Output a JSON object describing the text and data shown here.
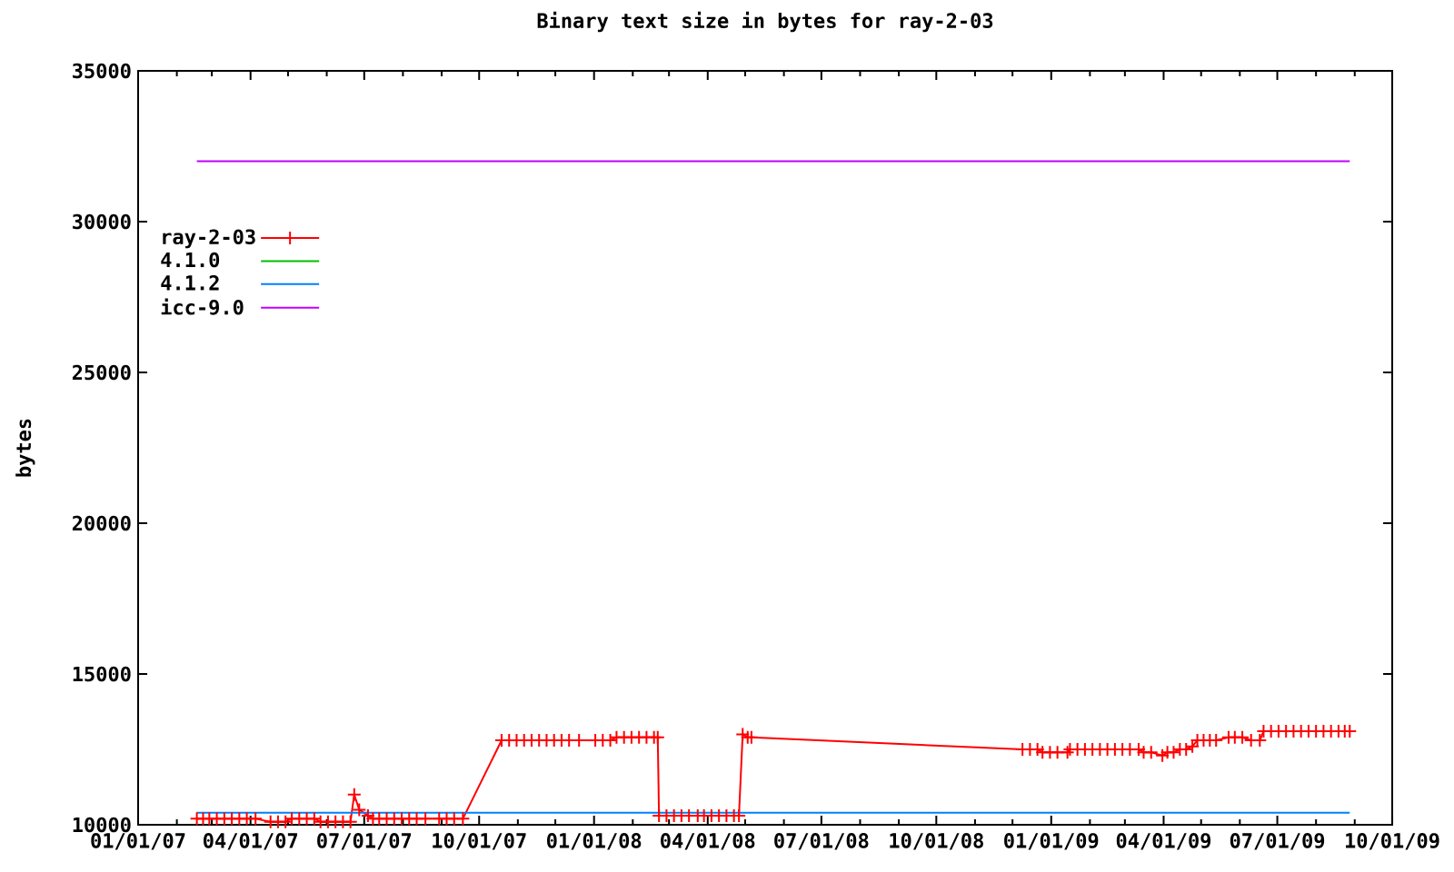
{
  "chart_data": {
    "type": "line",
    "title": "Binary text size in bytes for ray-2-03",
    "ylabel": "bytes",
    "xlim": [
      "2007-01-01",
      "2009-10-01"
    ],
    "ylim": [
      10000,
      35000
    ],
    "xticks": [
      {
        "value": "2007-01-01",
        "label": "01/01/07"
      },
      {
        "value": "2007-02-01",
        "label": null
      },
      {
        "value": "2007-03-01",
        "label": null
      },
      {
        "value": "2007-04-01",
        "label": "04/01/07"
      },
      {
        "value": "2007-05-01",
        "label": null
      },
      {
        "value": "2007-06-01",
        "label": null
      },
      {
        "value": "2007-07-01",
        "label": "07/01/07"
      },
      {
        "value": "2007-08-01",
        "label": null
      },
      {
        "value": "2007-09-01",
        "label": null
      },
      {
        "value": "2007-10-01",
        "label": "10/01/07"
      },
      {
        "value": "2007-11-01",
        "label": null
      },
      {
        "value": "2007-12-01",
        "label": null
      },
      {
        "value": "2008-01-01",
        "label": "01/01/08"
      },
      {
        "value": "2008-02-01",
        "label": null
      },
      {
        "value": "2008-03-01",
        "label": null
      },
      {
        "value": "2008-04-01",
        "label": "04/01/08"
      },
      {
        "value": "2008-05-01",
        "label": null
      },
      {
        "value": "2008-06-01",
        "label": null
      },
      {
        "value": "2008-07-01",
        "label": "07/01/08"
      },
      {
        "value": "2008-08-01",
        "label": null
      },
      {
        "value": "2008-09-01",
        "label": null
      },
      {
        "value": "2008-10-01",
        "label": "10/01/08"
      },
      {
        "value": "2008-11-01",
        "label": null
      },
      {
        "value": "2008-12-01",
        "label": null
      },
      {
        "value": "2009-01-01",
        "label": "01/01/09"
      },
      {
        "value": "2009-02-01",
        "label": null
      },
      {
        "value": "2009-03-01",
        "label": null
      },
      {
        "value": "2009-04-01",
        "label": "04/01/09"
      },
      {
        "value": "2009-05-01",
        "label": null
      },
      {
        "value": "2009-06-01",
        "label": null
      },
      {
        "value": "2009-07-01",
        "label": "07/01/09"
      },
      {
        "value": "2009-08-01",
        "label": null
      },
      {
        "value": "2009-09-01",
        "label": null
      },
      {
        "value": "2009-10-01",
        "label": "10/01/09"
      }
    ],
    "yticks": [
      10000,
      15000,
      20000,
      25000,
      30000,
      35000
    ],
    "legend": "top left",
    "series": [
      {
        "name": "ray-2-03",
        "color": "#ff0000",
        "marker": "cross",
        "x": [
          "2007-02-17",
          "2007-02-22",
          "2007-02-27",
          "2007-03-05",
          "2007-03-11",
          "2007-03-17",
          "2007-03-23",
          "2007-03-29",
          "2007-04-05",
          "2007-04-17",
          "2007-04-23",
          "2007-04-29",
          "2007-05-04",
          "2007-05-10",
          "2007-05-16",
          "2007-05-22",
          "2007-05-27",
          "2007-06-02",
          "2007-06-08",
          "2007-06-14",
          "2007-06-20",
          "2007-06-23",
          "2007-06-27",
          "2007-07-04",
          "2007-07-08",
          "2007-07-13",
          "2007-07-19",
          "2007-07-25",
          "2007-07-31",
          "2007-08-06",
          "2007-08-12",
          "2007-08-19",
          "2007-08-30",
          "2007-09-05",
          "2007-09-11",
          "2007-09-18",
          "2007-10-19",
          "2007-10-25",
          "2007-10-31",
          "2007-11-06",
          "2007-11-12",
          "2007-11-18",
          "2007-11-24",
          "2007-11-30",
          "2007-12-06",
          "2007-12-12",
          "2007-12-20",
          "2008-01-02",
          "2008-01-08",
          "2008-01-14",
          "2008-01-19",
          "2008-01-25",
          "2008-01-31",
          "2008-02-06",
          "2008-02-12",
          "2008-02-18",
          "2008-02-21",
          "2008-02-22",
          "2008-02-28",
          "2008-03-05",
          "2008-03-11",
          "2008-03-17",
          "2008-03-24",
          "2008-03-29",
          "2008-04-04",
          "2008-04-10",
          "2008-04-16",
          "2008-04-22",
          "2008-04-26",
          "2008-04-29",
          "2008-05-03",
          "2008-05-06",
          "2008-12-09",
          "2008-12-15",
          "2008-12-21",
          "2008-12-25",
          "2008-12-31",
          "2009-01-06",
          "2009-01-14",
          "2009-01-16",
          "2009-01-22",
          "2009-01-28",
          "2009-02-03",
          "2009-02-09",
          "2009-02-15",
          "2009-02-21",
          "2009-02-27",
          "2009-03-05",
          "2009-03-12",
          "2009-03-16",
          "2009-03-22",
          "2009-03-31",
          "2009-04-04",
          "2009-04-09",
          "2009-04-14",
          "2009-04-19",
          "2009-04-24",
          "2009-04-28",
          "2009-05-03",
          "2009-05-08",
          "2009-05-13",
          "2009-05-23",
          "2009-05-28",
          "2009-06-03",
          "2009-06-10",
          "2009-06-17",
          "2009-06-20",
          "2009-06-26",
          "2009-07-02",
          "2009-07-08",
          "2009-07-14",
          "2009-07-20",
          "2009-07-26",
          "2009-08-01",
          "2009-08-07",
          "2009-08-13",
          "2009-08-19",
          "2009-08-24",
          "2009-08-28"
        ],
        "values": [
          10200,
          10200,
          10200,
          10200,
          10200,
          10200,
          10200,
          10200,
          10200,
          10100,
          10100,
          10100,
          10200,
          10200,
          10200,
          10200,
          10100,
          10100,
          10100,
          10100,
          10100,
          11000,
          10500,
          10300,
          10200,
          10200,
          10200,
          10200,
          10200,
          10200,
          10200,
          10200,
          10200,
          10200,
          10200,
          10200,
          12800,
          12800,
          12800,
          12800,
          12800,
          12800,
          12800,
          12800,
          12800,
          12800,
          12800,
          12800,
          12800,
          12800,
          12900,
          12900,
          12900,
          12900,
          12900,
          12900,
          12900,
          10300,
          10300,
          10300,
          10300,
          10300,
          10300,
          10300,
          10300,
          10300,
          10300,
          10300,
          10300,
          13000,
          12900,
          12900,
          12500,
          12500,
          12500,
          12400,
          12400,
          12400,
          12400,
          12500,
          12500,
          12500,
          12500,
          12500,
          12500,
          12500,
          12500,
          12500,
          12500,
          12400,
          12400,
          12300,
          12400,
          12400,
          12500,
          12500,
          12600,
          12800,
          12800,
          12800,
          12800,
          12900,
          12900,
          12900,
          12800,
          12800,
          13100,
          13100,
          13100,
          13100,
          13100,
          13100,
          13100,
          13100,
          13100,
          13100,
          13100,
          13100,
          13100
        ]
      },
      {
        "name": "4.1.0",
        "color": "#00c000"
      },
      {
        "name": "4.1.2",
        "color": "#0080ff",
        "x": [
          "2007-02-17",
          "2009-08-28"
        ],
        "values": [
          10400,
          10400
        ]
      },
      {
        "name": "icc-9.0",
        "color": "#c000ff",
        "x": [
          "2007-02-17",
          "2009-08-28"
        ],
        "values": [
          32000,
          32000
        ]
      }
    ]
  }
}
